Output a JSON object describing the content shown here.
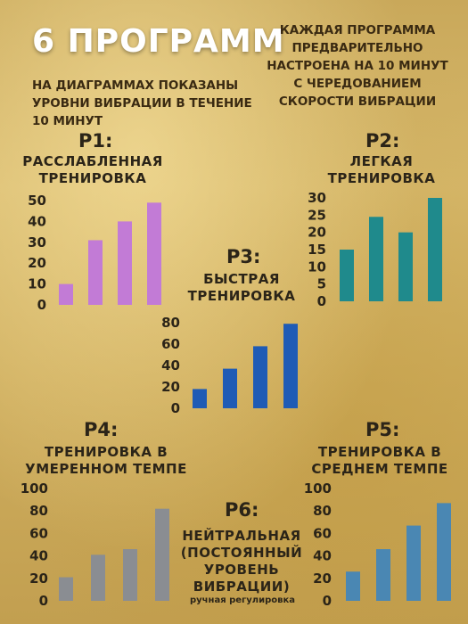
{
  "header": {
    "title": "6 ПРОГРАММ",
    "subtitle_left": "НА ДИАГРАММАХ ПОКАЗАНЫ УРОВНИ ВИБРАЦИИ В ТЕЧЕНИЕ 10 МИНУТ",
    "subtitle_right": "КАЖДАЯ ПРОГРАММА ПРЕДВАРИТЕЛЬНО НАСТРОЕНА НА 10 МИНУТ С ЧЕРЕДОВАНИЕМ СКОРОСТИ ВИБРАЦИИ"
  },
  "programs": {
    "p1": {
      "label": "P1:",
      "desc": "РАССЛАБЛЕННАЯ ТРЕНИРОВКА"
    },
    "p2": {
      "label": "P2:",
      "desc": "ЛЕГКАЯ ТРЕНИРОВКА"
    },
    "p3": {
      "label": "P3:",
      "desc": "БЫСТРАЯ ТРЕНИРОВКА"
    },
    "p4": {
      "label": "P4:",
      "desc": "ТРЕНИРОВКА В УМЕРЕННОМ ТЕМПЕ"
    },
    "p5": {
      "label": "P5:",
      "desc": "ТРЕНИРОВКА В СРЕДНЕМ ТЕМПЕ"
    },
    "p6": {
      "label": "P6:",
      "desc": "НЕЙТРАЛЬНАЯ (ПОСТОЯННЫЙ УРОВЕНЬ ВИБРАЦИИ)",
      "note": "ручная регулировка"
    }
  },
  "chart_data": [
    {
      "id": "p1",
      "type": "bar",
      "values": [
        10,
        31,
        40,
        49
      ],
      "yticks": [
        0,
        10,
        20,
        30,
        40,
        50
      ],
      "ylim": [
        0,
        50
      ],
      "color": "#c27bd6"
    },
    {
      "id": "p2",
      "type": "bar",
      "values": [
        15,
        24.5,
        20,
        30
      ],
      "yticks": [
        0,
        5,
        10,
        15,
        20,
        25,
        30
      ],
      "ylim": [
        0,
        30
      ],
      "color": "#1f8a8c"
    },
    {
      "id": "p3",
      "type": "bar",
      "values": [
        18,
        37,
        58,
        79
      ],
      "yticks": [
        0,
        20,
        40,
        60,
        80
      ],
      "ylim": [
        0,
        80
      ],
      "color": "#1f5bb5"
    },
    {
      "id": "p4",
      "type": "bar",
      "values": [
        21,
        41,
        46,
        82
      ],
      "yticks": [
        0,
        20,
        40,
        60,
        80,
        100
      ],
      "ylim": [
        0,
        100
      ],
      "color": "#8a8d92"
    },
    {
      "id": "p5",
      "type": "bar",
      "values": [
        26,
        46,
        67,
        87
      ],
      "yticks": [
        0,
        20,
        40,
        60,
        80,
        100
      ],
      "ylim": [
        0,
        100
      ],
      "color": "#4a87b3"
    }
  ]
}
